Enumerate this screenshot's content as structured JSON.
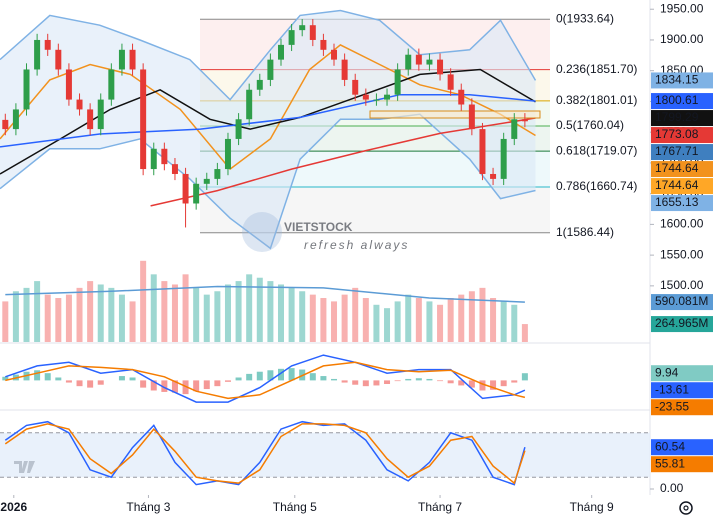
{
  "chart_data": [
    {
      "type": "candlestick",
      "xlim": [
        -0.5,
        60.8
      ],
      "ylim": [
        1477,
        1965
      ],
      "yticks": [
        {
          "value": 1950,
          "label": "1950.00"
        },
        {
          "value": 1900,
          "label": "1900.00"
        },
        {
          "value": 1850,
          "label": "1850.00"
        },
        {
          "value": 1800,
          "label": "1800.00"
        },
        {
          "value": 1750,
          "label": "1750.00"
        },
        {
          "value": 1700,
          "label": "1700.00"
        },
        {
          "value": 1650,
          "label": "1650.00"
        },
        {
          "value": 1600,
          "label": "1600.00"
        },
        {
          "value": 1550,
          "label": "1550.00"
        },
        {
          "value": 1500,
          "label": "1500.00"
        }
      ],
      "up_color": "#2e9e4a",
      "down_color": "#e53935",
      "open": [
        1770,
        1755,
        1787,
        1852,
        1900,
        1884,
        1852,
        1803,
        1787,
        1755,
        1803,
        1852,
        1884,
        1852,
        1690,
        1723,
        1698,
        1682,
        1634,
        1666,
        1674,
        1690,
        1739,
        1771,
        1819,
        1835,
        1868,
        1892,
        1916,
        1924,
        1900,
        1884,
        1868,
        1835,
        1811,
        1803,
        1803,
        1811,
        1852,
        1876,
        1860,
        1868,
        1844,
        1819,
        1795,
        1755,
        1682,
        1674,
        1739,
        1771
      ],
      "high": [
        1780,
        1797,
        1862,
        1910,
        1910,
        1894,
        1862,
        1813,
        1797,
        1813,
        1862,
        1894,
        1894,
        1862,
        1733,
        1733,
        1708,
        1692,
        1676,
        1684,
        1700,
        1749,
        1781,
        1829,
        1845,
        1878,
        1902,
        1926,
        1934,
        1934,
        1910,
        1894,
        1878,
        1845,
        1821,
        1813,
        1821,
        1862,
        1886,
        1886,
        1878,
        1878,
        1854,
        1829,
        1805,
        1765,
        1692,
        1749,
        1781,
        1781
      ],
      "low": [
        1745,
        1745,
        1777,
        1842,
        1874,
        1842,
        1793,
        1777,
        1745,
        1745,
        1793,
        1842,
        1842,
        1680,
        1680,
        1688,
        1672,
        1595,
        1624,
        1656,
        1664,
        1680,
        1729,
        1761,
        1809,
        1825,
        1858,
        1882,
        1906,
        1890,
        1874,
        1858,
        1825,
        1801,
        1793,
        1793,
        1793,
        1801,
        1842,
        1850,
        1850,
        1834,
        1809,
        1785,
        1745,
        1672,
        1664,
        1664,
        1729,
        1758
      ],
      "close": [
        1755,
        1787,
        1852,
        1900,
        1884,
        1852,
        1803,
        1787,
        1755,
        1803,
        1852,
        1884,
        1852,
        1690,
        1723,
        1698,
        1682,
        1634,
        1666,
        1674,
        1690,
        1739,
        1771,
        1819,
        1835,
        1868,
        1892,
        1916,
        1924,
        1900,
        1884,
        1868,
        1835,
        1811,
        1803,
        1803,
        1811,
        1852,
        1876,
        1860,
        1868,
        1844,
        1819,
        1795,
        1755,
        1682,
        1674,
        1739,
        1771,
        1767.71
      ],
      "close_label_color": "#3f7fbf",
      "lines": [
        {
          "color": "#7fb2e5",
          "x": [
            -0.5,
            4.2,
            8.9,
            12.7,
            17.4,
            21.2,
            25,
            27.8,
            31.6,
            35.3,
            39.1,
            43.8,
            46.7,
            50
          ],
          "values": [
            1868,
            1940,
            1924,
            1900,
            1868,
            1803,
            1884,
            1940,
            1948,
            1932,
            1876,
            1884,
            1932,
            1834.15
          ]
        },
        {
          "color": "#7fb2e5",
          "x": [
            -0.5,
            4.2,
            8.9,
            12.7,
            17.4,
            21.2,
            25,
            27.8,
            31.6,
            35.3,
            39.1,
            43.8,
            46.7,
            50
          ],
          "values": [
            1658,
            1723,
            1723,
            1739,
            1674,
            1610,
            1561,
            1706,
            1771,
            1771,
            1779,
            1706,
            1642,
            1655.13
          ]
        },
        {
          "color": "#f2921d",
          "x": [
            -0.5,
            4.2,
            8,
            11.8,
            16.5,
            21.2,
            25,
            28.7,
            31.6,
            35.3,
            39.1,
            42.9,
            46.7,
            50
          ],
          "values": [
            1739,
            1835,
            1860,
            1844,
            1787,
            1690,
            1739,
            1852,
            1892,
            1860,
            1827,
            1811,
            1779,
            1744.64
          ]
        },
        {
          "color": "#111111",
          "x": [
            -0.5,
            5.2,
            9.9,
            14.6,
            19.3,
            23.1,
            27.8,
            32.5,
            39.1,
            44.8,
            50
          ],
          "values": [
            1682,
            1739,
            1787,
            1819,
            1771,
            1755,
            1774,
            1803,
            1844,
            1852,
            1799.29
          ]
        },
        {
          "color": "#2962ff",
          "x": [
            -0.5,
            8.9,
            18.4,
            27.8,
            37.2,
            43.8,
            50
          ],
          "values": [
            1726,
            1747,
            1755,
            1774,
            1811,
            1811,
            1800.61
          ]
        },
        {
          "color": "#e53935",
          "x": [
            13.7,
            20,
            27,
            34,
            41,
            50
          ],
          "values": [
            1630,
            1655,
            1690,
            1720,
            1748,
            1773.08
          ]
        }
      ],
      "band_fill": "#dbe8f7",
      "fib": [
        {
          "value": 1933.64,
          "label": "0(1933.64)",
          "color": "#888888"
        },
        {
          "value": 1851.7,
          "label": "0.236(1851.70)",
          "color": "#e53935"
        },
        {
          "value": 1801.01,
          "label": "0.382(1801.01)",
          "color": "#d9a400"
        },
        {
          "value": 1760.04,
          "label": "0.5(1760.04)",
          "color": "#4caf50"
        },
        {
          "value": 1719.07,
          "label": "0.618(1719.07)",
          "color": "#1b7a3a"
        },
        {
          "value": 1660.74,
          "label": "0.786(1660.74)",
          "color": "#26b8c8"
        },
        {
          "value": 1586.44,
          "label": "1(1586.44)",
          "color": "#888888"
        }
      ],
      "watermark": "VIETSTOCK",
      "watermark_sub": "refresh always"
    },
    {
      "type": "bar",
      "ylim": [
        0,
        3000
      ],
      "values": [
        600,
        750,
        800,
        900,
        700,
        650,
        700,
        800,
        900,
        850,
        800,
        700,
        600,
        1200,
        1000,
        900,
        850,
        1000,
        800,
        700,
        750,
        850,
        900,
        1000,
        950,
        900,
        850,
        800,
        750,
        700,
        650,
        600,
        700,
        800,
        650,
        550,
        500,
        600,
        700,
        650,
        600,
        550,
        650,
        700,
        750,
        800,
        650,
        600,
        550,
        264.965
      ],
      "value_labels": {
        "49": "264.965M"
      },
      "lines": [
        {
          "color": "#5b9bd5",
          "x": [
            0,
            10,
            20,
            30,
            40,
            49
          ],
          "values": [
            700,
            750,
            820,
            800,
            650,
            590.081
          ],
          "label": "590.081M"
        }
      ]
    },
    {
      "type": "macd",
      "ylim": [
        -41,
        49
      ],
      "histogram": [
        5,
        8,
        12,
        14,
        10,
        4,
        -3,
        -8,
        -10,
        -6,
        0,
        6,
        4,
        -10,
        -14,
        -16,
        -17,
        -19,
        -15,
        -12,
        -8,
        -2,
        4,
        9,
        12,
        14,
        16,
        17,
        15,
        10,
        6,
        2,
        -3,
        -6,
        -8,
        -7,
        -5,
        -1,
        2,
        3,
        2,
        -1,
        -4,
        -7,
        -10,
        -14,
        -13,
        -8,
        -3,
        9.94
      ],
      "lines": [
        {
          "color": "#2962ff",
          "x": [
            0,
            3,
            6,
            9,
            12,
            15,
            18,
            21,
            24,
            27,
            30,
            33,
            36,
            39,
            42,
            45,
            48,
            49
          ],
          "values": [
            5,
            20,
            25,
            10,
            15,
            -10,
            -30,
            -30,
            -10,
            20,
            35,
            25,
            10,
            15,
            15,
            -25,
            -20,
            -13.61
          ]
        },
        {
          "color": "#f57c00",
          "x": [
            0,
            3,
            6,
            9,
            12,
            15,
            18,
            21,
            24,
            27,
            30,
            33,
            36,
            39,
            42,
            45,
            48,
            49
          ],
          "values": [
            0,
            10,
            20,
            18,
            15,
            5,
            -15,
            -25,
            -20,
            0,
            20,
            25,
            15,
            12,
            14,
            -5,
            -20,
            -23.55
          ]
        }
      ]
    },
    {
      "type": "line",
      "ylim": [
        0,
        100
      ],
      "yticks": [
        {
          "value": 0,
          "label": "0.00"
        }
      ],
      "bands": [
        20,
        80
      ],
      "xticks": [
        {
          "value": 0.8,
          "label": "2026"
        },
        {
          "value": 13.5,
          "label": "Tháng 3"
        },
        {
          "value": 27.3,
          "label": "Tháng 5"
        },
        {
          "value": 41,
          "label": "Tháng 7"
        },
        {
          "value": 55.3,
          "label": "Tháng 9"
        }
      ],
      "lines": [
        {
          "color": "#2962ff",
          "x": [
            0,
            2,
            4,
            6,
            8,
            10,
            12,
            14,
            16,
            18,
            20,
            22,
            24,
            26,
            28,
            30,
            32,
            34,
            36,
            38,
            40,
            42,
            44,
            46,
            48,
            49
          ],
          "values": [
            70,
            90,
            95,
            80,
            30,
            20,
            60,
            90,
            40,
            10,
            15,
            10,
            40,
            85,
            95,
            90,
            92,
            70,
            30,
            15,
            40,
            80,
            70,
            20,
            10,
            60.54
          ]
        },
        {
          "color": "#f57c00",
          "x": [
            0,
            2,
            4,
            6,
            8,
            10,
            12,
            14,
            16,
            18,
            20,
            22,
            24,
            26,
            28,
            30,
            32,
            34,
            36,
            38,
            40,
            42,
            44,
            46,
            48,
            49
          ],
          "values": [
            65,
            85,
            92,
            85,
            45,
            25,
            50,
            85,
            55,
            20,
            15,
            12,
            30,
            75,
            92,
            92,
            90,
            80,
            45,
            20,
            35,
            70,
            75,
            35,
            12,
            55.81
          ]
        }
      ]
    }
  ]
}
